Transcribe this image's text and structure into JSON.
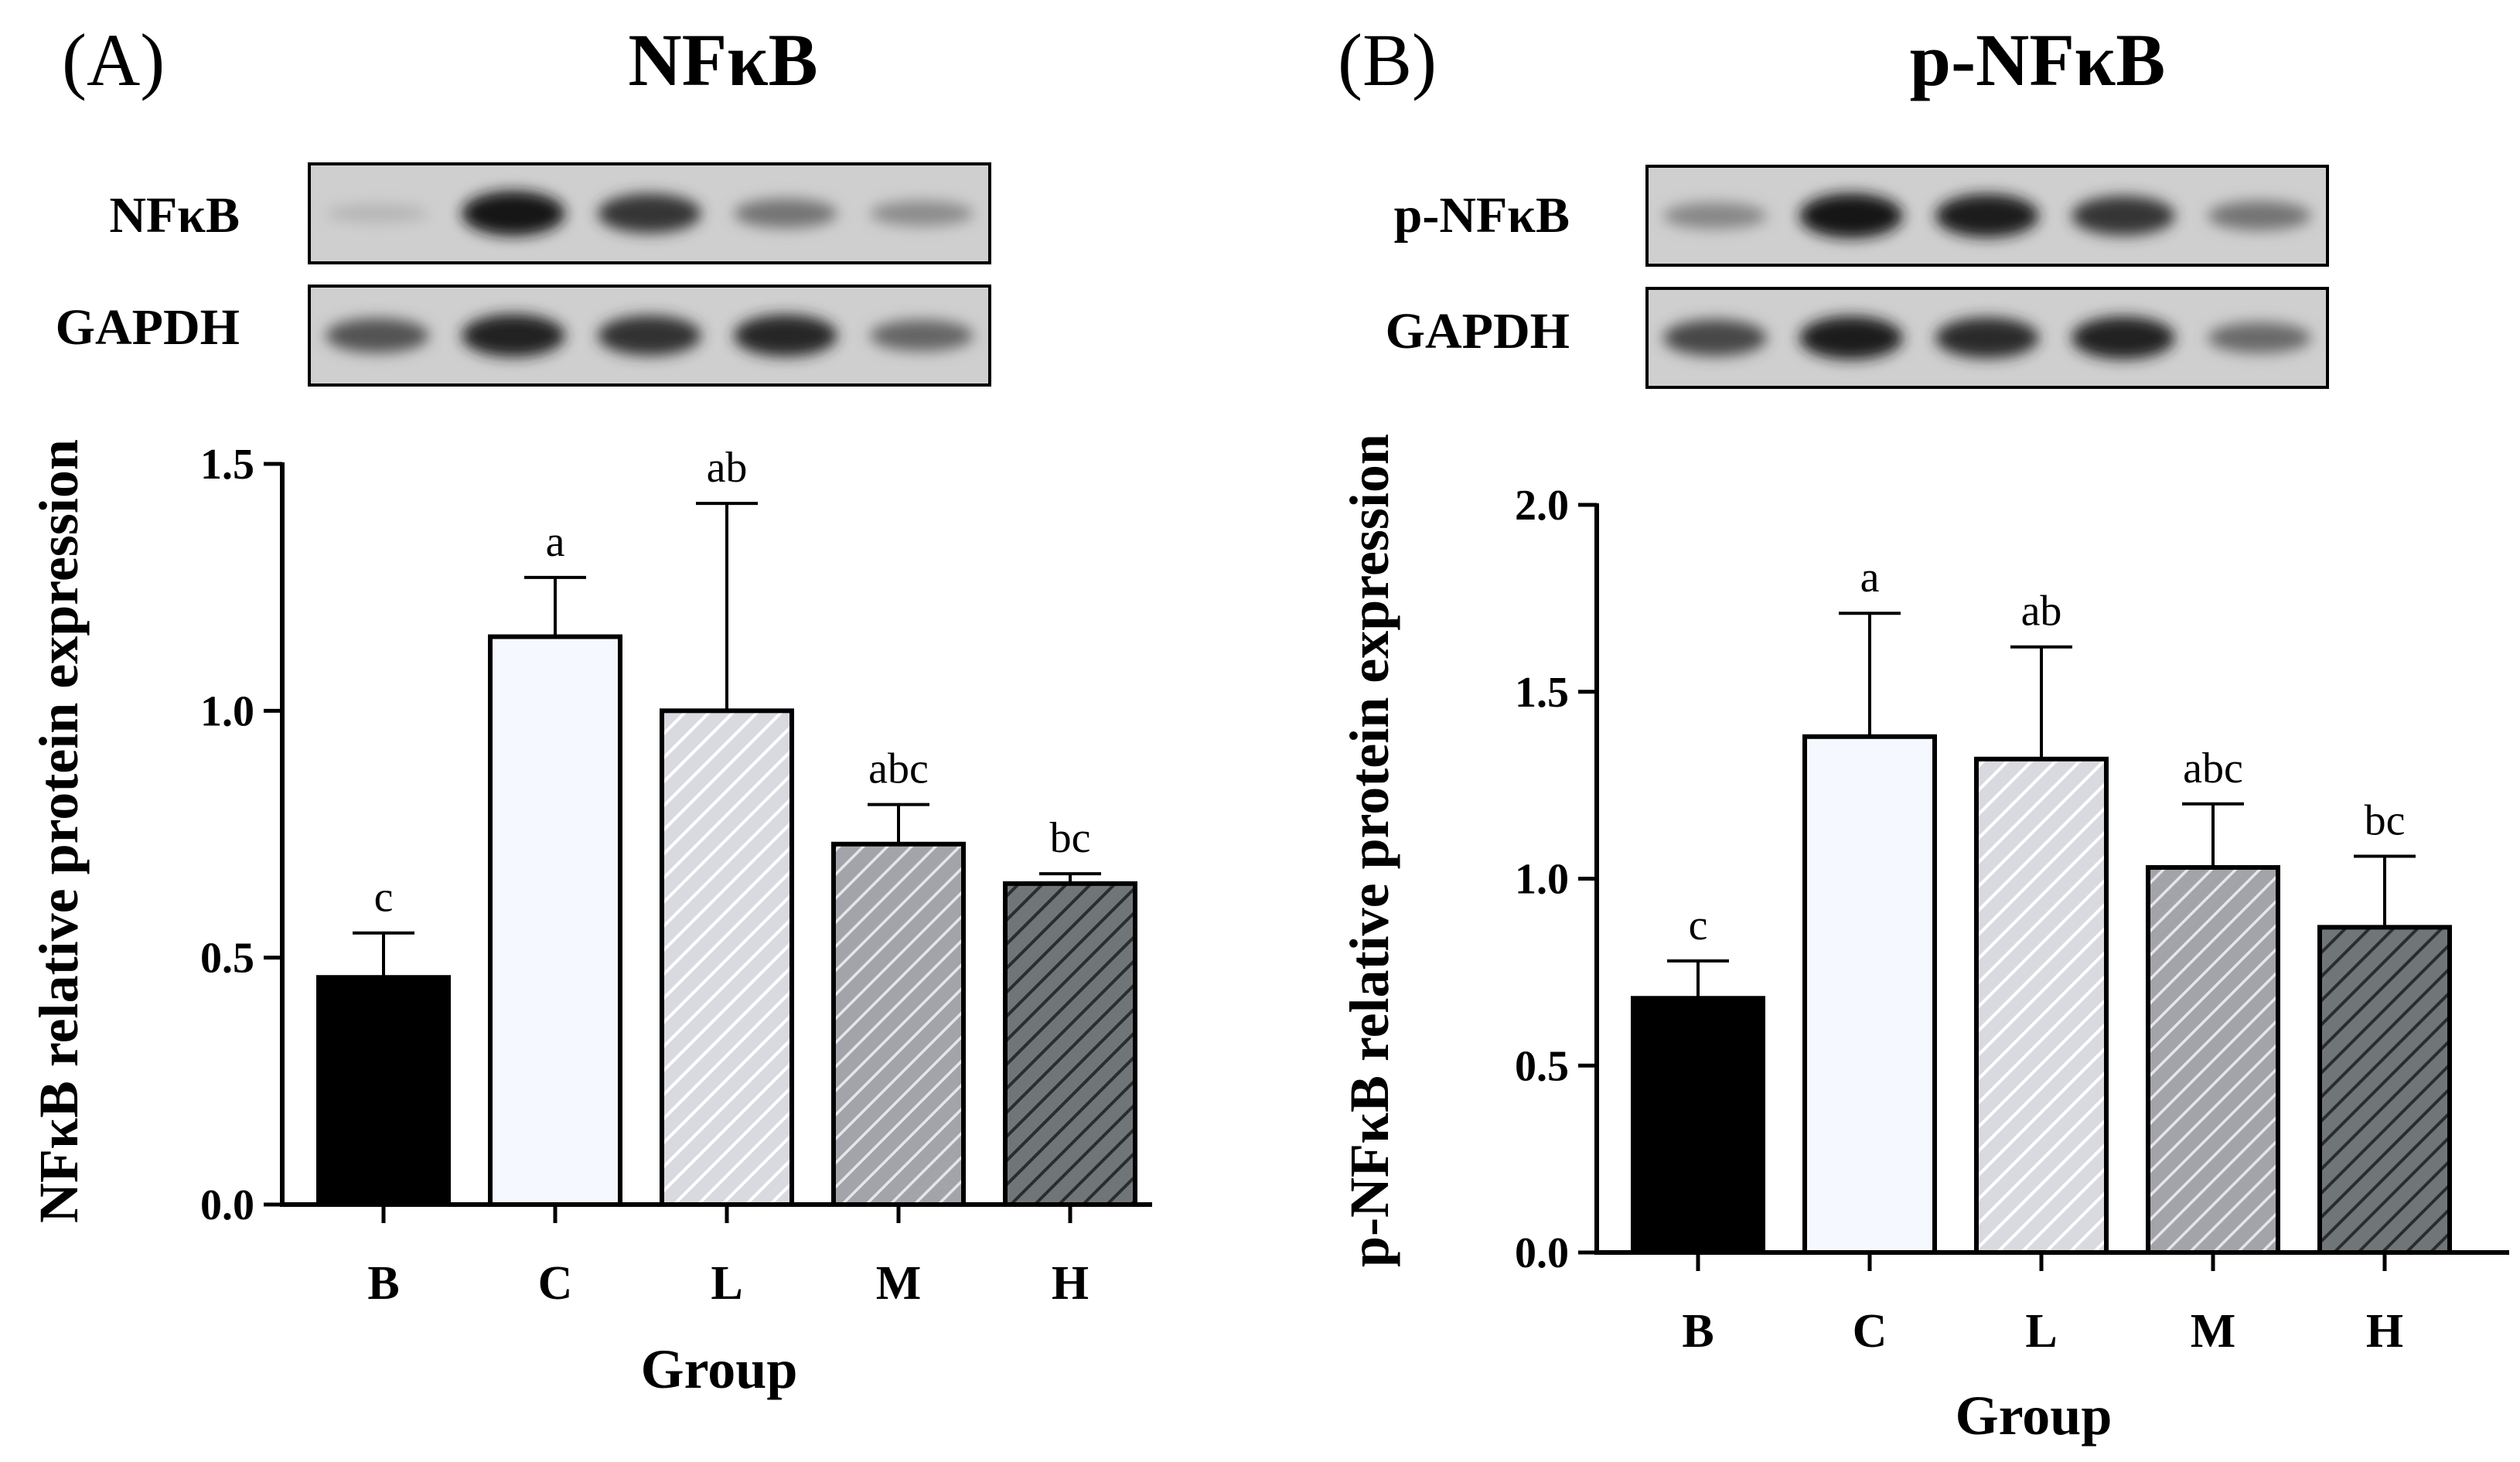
{
  "palette": {
    "B": "#000000",
    "C": "#f5f8ff",
    "L": "#d9d9e0",
    "M": "#a3a3aa",
    "H": "#707678"
  },
  "chart_data": [
    {
      "type": "bar",
      "panel_label": "(A)",
      "title": "NFκB",
      "blot_rows": [
        {
          "label": "NFκB",
          "intensities": [
            0.1,
            0.95,
            0.78,
            0.45,
            0.32
          ]
        },
        {
          "label": "GAPDH",
          "intensities": [
            0.62,
            0.88,
            0.8,
            0.85,
            0.52
          ]
        }
      ],
      "categories": [
        "B",
        "C",
        "L",
        "M",
        "H"
      ],
      "values": [
        0.46,
        1.15,
        1.0,
        0.73,
        0.65
      ],
      "errors": [
        0.09,
        0.12,
        0.42,
        0.08,
        0.02
      ],
      "significance": [
        "c",
        "a",
        "ab",
        "abc",
        "bc"
      ],
      "xlabel": "Group",
      "ylabel": "NFκB relative protein expression",
      "ylim": [
        0,
        1.5
      ],
      "yticks": [
        "0.0",
        "0.5",
        "1.0",
        "1.5"
      ],
      "yticks_values": [
        0,
        0.5,
        1.0,
        1.5
      ],
      "grid": false
    },
    {
      "type": "bar",
      "panel_label": "(B)",
      "title": "p-NFκB",
      "blot_rows": [
        {
          "label": "p-NFκB",
          "intensities": [
            0.35,
            0.95,
            0.9,
            0.78,
            0.45
          ]
        },
        {
          "label": "GAPDH",
          "intensities": [
            0.68,
            0.9,
            0.82,
            0.88,
            0.5
          ]
        }
      ],
      "categories": [
        "B",
        "C",
        "L",
        "M",
        "H"
      ],
      "values": [
        0.68,
        1.38,
        1.32,
        1.03,
        0.87
      ],
      "errors": [
        0.1,
        0.33,
        0.3,
        0.17,
        0.19
      ],
      "significance": [
        "c",
        "a",
        "ab",
        "abc",
        "bc"
      ],
      "xlabel": "Group",
      "ylabel": "p-NFκB relative protein expression",
      "ylim": [
        0,
        2.0
      ],
      "yticks": [
        "0.0",
        "0.5",
        "1.0",
        "1.5",
        "2.0"
      ],
      "yticks_values": [
        0,
        0.5,
        1.0,
        1.5,
        2.0
      ],
      "grid": false
    }
  ]
}
